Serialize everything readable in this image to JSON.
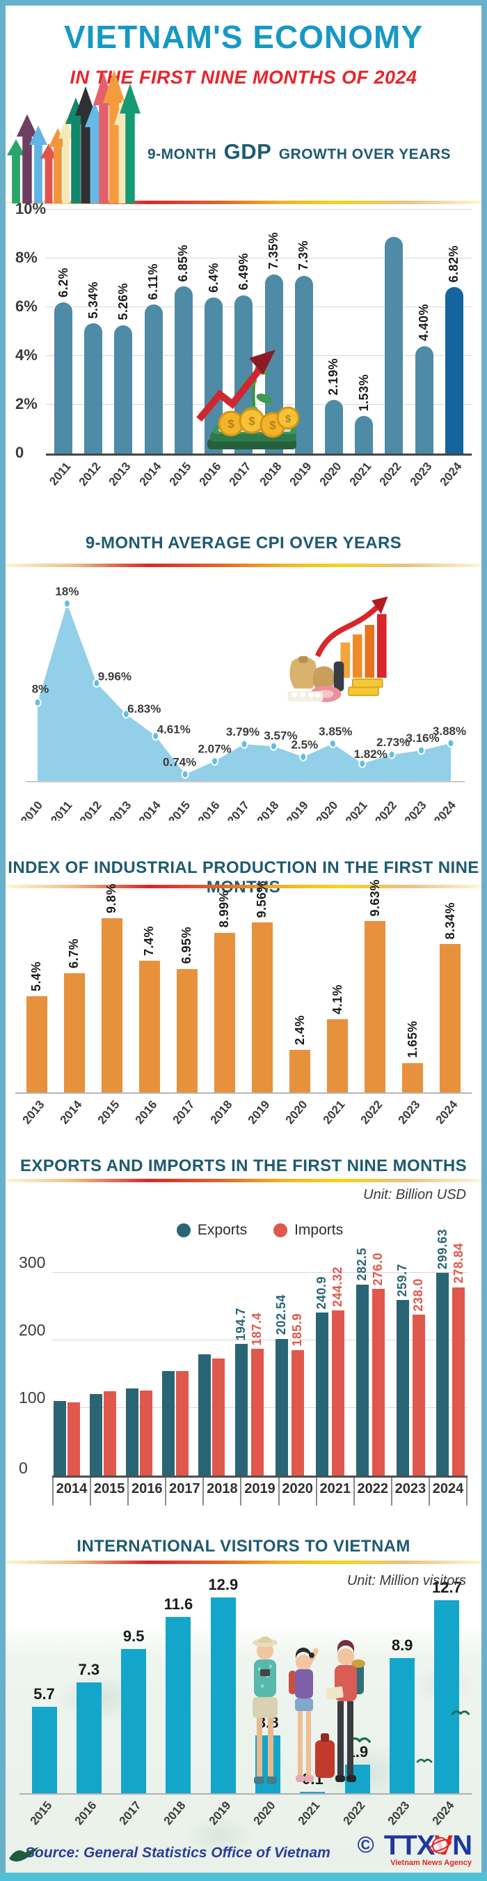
{
  "header": {
    "title": "VIETNAM'S ECONOMY",
    "subtitle": "IN THE FIRST NINE MONTHS OF 2024"
  },
  "gdp_header": {
    "prefix": "9-MONTH",
    "emphasis": "GDP",
    "suffix": "GROWTH OVER YEARS"
  },
  "palette": {
    "title_color": "#1798c3",
    "subtitle_color": "#e8252a",
    "section_header_color": "#1e5a70",
    "page_border": "#68b0ca",
    "bottom_strip": "#4fc0d6"
  },
  "chart_data": [
    {
      "id": "gdp",
      "type": "bar",
      "title": "9-MONTH GDP GROWTH OVER YEARS",
      "categories": [
        "2011",
        "2012",
        "2013",
        "2014",
        "2015",
        "2016",
        "2017",
        "2018",
        "2019",
        "2020",
        "2021",
        "2022",
        "2023",
        "2024"
      ],
      "values": [
        6.2,
        5.34,
        5.26,
        6.11,
        6.85,
        6.4,
        6.49,
        7.35,
        7.3,
        2.19,
        1.53,
        8.9,
        4.4,
        6.82
      ],
      "labels": [
        "6.2%",
        "5.34%",
        "5.26%",
        "6.11%",
        "6.85%",
        "6.4%",
        "6.49%",
        "7.35%",
        "7.3%",
        "2.19%",
        "1.53%",
        "",
        "4.40%",
        "6.82%"
      ],
      "yticks": [
        {
          "label": "10%",
          "value": 10
        },
        {
          "label": "8%",
          "value": 8
        },
        {
          "label": "6%",
          "value": 6
        },
        {
          "label": "4%",
          "value": 4
        },
        {
          "label": "2%",
          "value": 2
        },
        {
          "label": "0",
          "value": 0
        }
      ],
      "ylim": [
        0,
        10
      ],
      "bar_color": "#4e8ba6",
      "highlight_index": 13,
      "highlight_color": "#14649e",
      "grid": true
    },
    {
      "id": "cpi",
      "type": "area",
      "title": "9-MONTH AVERAGE CPI OVER YEARS",
      "categories": [
        "2010",
        "2011",
        "2012",
        "2013",
        "2014",
        "2015",
        "2016",
        "2017",
        "2018",
        "2019",
        "2020",
        "2021",
        "2022",
        "2023",
        "2024"
      ],
      "values": [
        8,
        18,
        9.96,
        6.83,
        4.61,
        0.74,
        2.07,
        3.79,
        3.57,
        2.5,
        3.85,
        1.82,
        2.73,
        3.16,
        3.88
      ],
      "labels": [
        "8%",
        "18%",
        "9.96%",
        "6.83%",
        "4.61%",
        "0.74%",
        "2.07%",
        "3.79%",
        "3.57%",
        "2.5%",
        "3.85%",
        "1.82%",
        "2.73%",
        "3.16%",
        "3.88%"
      ],
      "fill_color": "#92cfe9",
      "dot_color": "#5fbfe4",
      "ylim": [
        0,
        20
      ],
      "grid": false
    },
    {
      "id": "iip",
      "type": "bar",
      "title": "INDEX OF INDUSTRIAL PRODUCTION IN THE FIRST NINE MONTHS",
      "categories": [
        "2013",
        "2014",
        "2015",
        "2016",
        "2017",
        "2018",
        "2019",
        "2020",
        "2021",
        "2022",
        "2023",
        "2024"
      ],
      "values": [
        5.4,
        6.7,
        9.8,
        7.4,
        6.95,
        8.99,
        9.56,
        2.4,
        4.1,
        9.63,
        1.65,
        8.34
      ],
      "labels": [
        "5.4%",
        "6.7%",
        "9.8%",
        "7.4%",
        "6.95%",
        "8.99%",
        "9.56%",
        "2.4%",
        "4.1%",
        "9.63%",
        "1.65%",
        "8.34%"
      ],
      "bar_color": "#e8913c",
      "ylim": [
        0,
        10
      ],
      "grid": false
    },
    {
      "id": "trade",
      "type": "bar",
      "title": "EXPORTS AND IMPORTS IN THE FIRST NINE MONTHS",
      "unit": "Unit: Billion USD",
      "categories": [
        "2014",
        "2015",
        "2016",
        "2017",
        "2018",
        "2019",
        "2020",
        "2021",
        "2022",
        "2023",
        "2024"
      ],
      "series": [
        {
          "name": "Exports",
          "color": "#2a6575",
          "values": [
            110,
            121,
            129,
            155,
            179,
            194.7,
            202.54,
            240.9,
            282.5,
            259.7,
            299.63
          ],
          "labels": [
            "",
            "",
            "",
            "",
            "",
            "194.7",
            "202.54",
            "240.9",
            "282.5",
            "259.7",
            "299.63"
          ]
        },
        {
          "name": "Imports",
          "color": "#e0584c",
          "values": [
            108,
            125,
            126,
            155,
            173,
            187.4,
            185.9,
            244.32,
            276.0,
            238.0,
            278.84
          ],
          "labels": [
            "",
            "",
            "",
            "",
            "",
            "187.4",
            "185.9",
            "244.32",
            "276.0",
            "238.0",
            "278.84"
          ]
        }
      ],
      "yticks": [
        {
          "label": "300",
          "value": 300
        },
        {
          "label": "200",
          "value": 200
        },
        {
          "label": "100",
          "value": 100
        },
        {
          "label": "0",
          "value": 0
        }
      ],
      "ylim": [
        0,
        320
      ],
      "grid": true,
      "legend_position": "top-center"
    },
    {
      "id": "visitors",
      "type": "bar",
      "title": "INTERNATIONAL VISITORS TO VIETNAM",
      "unit": "Unit: Million visitors",
      "categories": [
        "2015",
        "2016",
        "2017",
        "2018",
        "2019",
        "2020",
        "2021",
        "2022",
        "2023",
        "2024"
      ],
      "values": [
        5.7,
        7.3,
        9.5,
        11.6,
        12.9,
        3.8,
        0.1,
        1.9,
        8.9,
        12.7
      ],
      "labels": [
        "5.7",
        "7.3",
        "9.5",
        "11.6",
        "12.9",
        "3.8",
        "0.1",
        "1.9",
        "8.9",
        "12.7"
      ],
      "bar_color": "#14a5ca",
      "ylim": [
        0,
        13
      ],
      "grid": false
    }
  ],
  "footer": {
    "source": "Source: General Statistics Office of Vietnam",
    "copyright": "©",
    "logo_part1": "TTX",
    "logo_part2": "V",
    "logo_part3": "N",
    "logo_sub": "Vietnam News Agency"
  }
}
